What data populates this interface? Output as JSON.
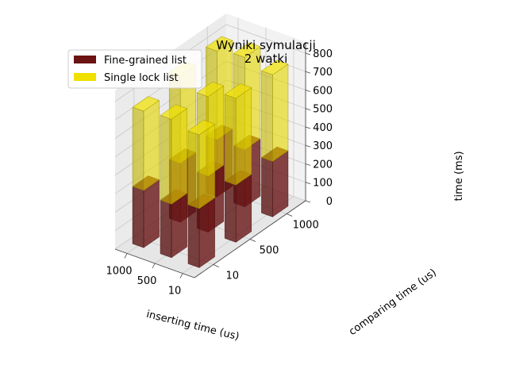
{
  "chart_data": {
    "type": "bar3d",
    "title": "Wyniki symulacji",
    "subtitle": "2 wątki",
    "xlabel": "inserting time (us)",
    "ylabel": "comparing time (us)",
    "zlabel": "time (ms)",
    "x_ticks": [
      "1000",
      "500",
      "10"
    ],
    "y_ticks": [
      "10",
      "500",
      "1000"
    ],
    "z_ticks": [
      "0",
      "100",
      "200",
      "300",
      "400",
      "500",
      "600",
      "700",
      "800"
    ],
    "zlim": [
      0,
      860
    ],
    "grid": true,
    "legend_position": "top-left",
    "series": [
      {
        "name": "Fine-grained list",
        "color": "#6b1212",
        "points": [
          {
            "inserting": 1000,
            "comparing": 10,
            "time": 310
          },
          {
            "inserting": 1000,
            "comparing": 500,
            "time": 320
          },
          {
            "inserting": 1000,
            "comparing": 1000,
            "time": 310
          },
          {
            "inserting": 500,
            "comparing": 10,
            "time": 290
          },
          {
            "inserting": 500,
            "comparing": 500,
            "time": 305
          },
          {
            "inserting": 500,
            "comparing": 1000,
            "time": 310
          },
          {
            "inserting": 10,
            "comparing": 10,
            "time": 320
          },
          {
            "inserting": 10,
            "comparing": 500,
            "time": 310
          },
          {
            "inserting": 10,
            "comparing": 1000,
            "time": 300
          }
        ]
      },
      {
        "name": "Single lock list",
        "color": "#f0e000",
        "points": [
          {
            "inserting": 1000,
            "comparing": 10,
            "time": 430
          },
          {
            "inserting": 1000,
            "comparing": 500,
            "time": 470
          },
          {
            "inserting": 1000,
            "comparing": 1000,
            "time": 480
          },
          {
            "inserting": 500,
            "comparing": 10,
            "time": 460
          },
          {
            "inserting": 500,
            "comparing": 500,
            "time": 430
          },
          {
            "inserting": 500,
            "comparing": 1000,
            "time": 500
          },
          {
            "inserting": 10,
            "comparing": 10,
            "time": 400
          },
          {
            "inserting": 10,
            "comparing": 500,
            "time": 470
          },
          {
            "inserting": 10,
            "comparing": 1000,
            "time": 470
          }
        ]
      }
    ]
  }
}
